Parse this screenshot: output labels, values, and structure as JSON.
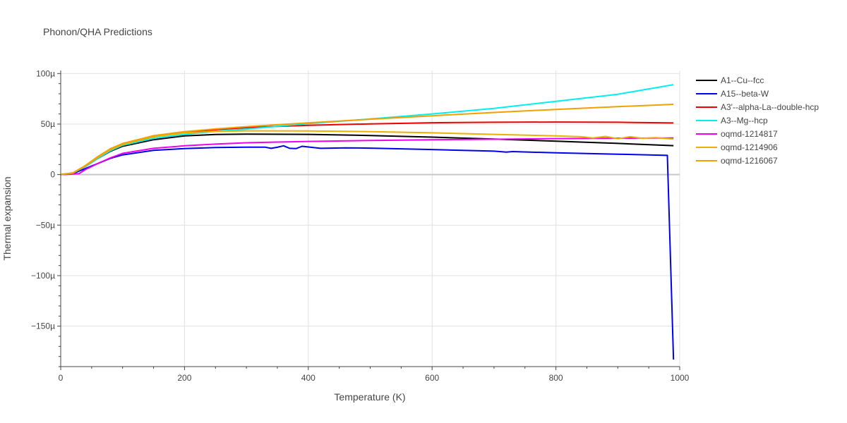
{
  "chart_data": {
    "type": "line",
    "title": "Phonon/QHA Predictions",
    "xlabel": "Temperature (K)",
    "ylabel": "Thermal expansion",
    "xlim": [
      0,
      1000
    ],
    "ylim": [
      -0.00019,
      0.000103
    ],
    "x_ticks": [
      0,
      200,
      400,
      600,
      800,
      1000
    ],
    "x_tick_labels": [
      "0",
      "200",
      "400",
      "600",
      "800",
      "1000"
    ],
    "y_ticks": [
      -0.00015,
      -0.0001,
      -5e-05,
      0,
      5e-05,
      0.0001
    ],
    "y_tick_labels": [
      "−150µ",
      "−100µ",
      "−50µ",
      "0",
      "50µ",
      "100µ"
    ],
    "grid": true,
    "legend_position": "right",
    "series": [
      {
        "name": "A1--Cu--fcc",
        "color": "#000000",
        "x": [
          0,
          20,
          40,
          60,
          80,
          100,
          150,
          200,
          250,
          300,
          400,
          500,
          600,
          700,
          800,
          900,
          990
        ],
        "y": [
          0,
          1.5e-06,
          8e-06,
          1.6e-05,
          2.3e-05,
          2.8e-05,
          3.45e-05,
          3.83e-05,
          3.97e-05,
          4.01e-05,
          3.98e-05,
          3.87e-05,
          3.71e-05,
          3.52e-05,
          3.31e-05,
          3.09e-05,
          2.86e-05
        ]
      },
      {
        "name": "A15--beta-W",
        "color": "#0000ee",
        "x": [
          0,
          20,
          40,
          60,
          80,
          100,
          150,
          200,
          250,
          300,
          330,
          340,
          350,
          360,
          370,
          380,
          390,
          420,
          460,
          500,
          600,
          700,
          720,
          730,
          800,
          900,
          980,
          990
        ],
        "y": [
          0,
          1e-06,
          6e-06,
          1.1e-05,
          1.6e-05,
          1.95e-05,
          2.4e-05,
          2.58e-05,
          2.68e-05,
          2.71e-05,
          2.72e-05,
          2.6e-05,
          2.7e-05,
          2.85e-05,
          2.6e-05,
          2.57e-05,
          2.8e-05,
          2.6e-05,
          2.65e-05,
          2.62e-05,
          2.48e-05,
          2.32e-05,
          2.22e-05,
          2.28e-05,
          2.15e-05,
          2.02e-05,
          1.9e-05,
          -0.000183
        ]
      },
      {
        "name": "A3'--alpha-La--double-hcp",
        "color": "#ee0000",
        "x": [
          0,
          20,
          40,
          60,
          80,
          100,
          150,
          200,
          250,
          300,
          400,
          500,
          600,
          700,
          800,
          900,
          990
        ],
        "y": [
          0,
          1.5e-06,
          8.5e-06,
          1.7e-05,
          2.45e-05,
          2.95e-05,
          3.75e-05,
          4.18e-05,
          4.45e-05,
          4.65e-05,
          4.88e-05,
          5.02e-05,
          5.13e-05,
          5.18e-05,
          5.2e-05,
          5.18e-05,
          5.11e-05
        ]
      },
      {
        "name": "A3--Mg--hcp",
        "color": "#00eeee",
        "x": [
          0,
          20,
          40,
          60,
          80,
          100,
          150,
          200,
          250,
          300,
          400,
          500,
          600,
          700,
          800,
          900,
          990
        ],
        "y": [
          0,
          1.5e-06,
          8e-06,
          1.6e-05,
          2.35e-05,
          2.9e-05,
          3.58e-05,
          3.98e-05,
          4.28e-05,
          4.5e-05,
          5.05e-05,
          5.5e-05,
          6e-05,
          6.55e-05,
          7.25e-05,
          7.95e-05,
          8.9e-05
        ]
      },
      {
        "name": "oqmd-1214817",
        "color": "#ee00ee",
        "x": [
          0,
          20,
          30,
          40,
          60,
          80,
          100,
          150,
          200,
          250,
          300,
          400,
          500,
          600,
          700,
          800,
          900,
          990
        ],
        "y": [
          0,
          5e-07,
          1e-06,
          5e-06,
          1.1e-05,
          1.65e-05,
          2.1e-05,
          2.6e-05,
          2.85e-05,
          3.02e-05,
          3.15e-05,
          3.28e-05,
          3.37e-05,
          3.45e-05,
          3.5e-05,
          3.56e-05,
          3.6e-05,
          3.62e-05
        ]
      },
      {
        "name": "oqmd-1214906",
        "color": "#ebb000",
        "x": [
          0,
          20,
          40,
          60,
          80,
          100,
          150,
          200,
          250,
          300,
          400,
          500,
          600,
          700,
          800,
          840,
          860,
          880,
          900,
          920,
          940,
          960,
          990
        ],
        "y": [
          0,
          1.6e-06,
          8.5e-06,
          1.7e-05,
          2.45e-05,
          2.98e-05,
          3.75e-05,
          4.13e-05,
          4.27e-05,
          4.33e-05,
          4.32e-05,
          4.25e-05,
          4.13e-05,
          3.98e-05,
          3.83e-05,
          3.75e-05,
          3.62e-05,
          3.78e-05,
          3.55e-05,
          3.75e-05,
          3.58e-05,
          3.65e-05,
          3.52e-05
        ]
      },
      {
        "name": "oqmd-1216067",
        "color": "#f0a000",
        "x": [
          0,
          20,
          40,
          60,
          80,
          100,
          150,
          200,
          250,
          300,
          400,
          500,
          600,
          700,
          800,
          900,
          990
        ],
        "y": [
          0,
          1.8e-06,
          9e-06,
          1.78e-05,
          2.55e-05,
          3.08e-05,
          3.85e-05,
          4.25e-05,
          4.52e-05,
          4.75e-05,
          5.12e-05,
          5.48e-05,
          5.82e-05,
          6.15e-05,
          6.45e-05,
          6.72e-05,
          6.95e-05
        ]
      }
    ]
  }
}
